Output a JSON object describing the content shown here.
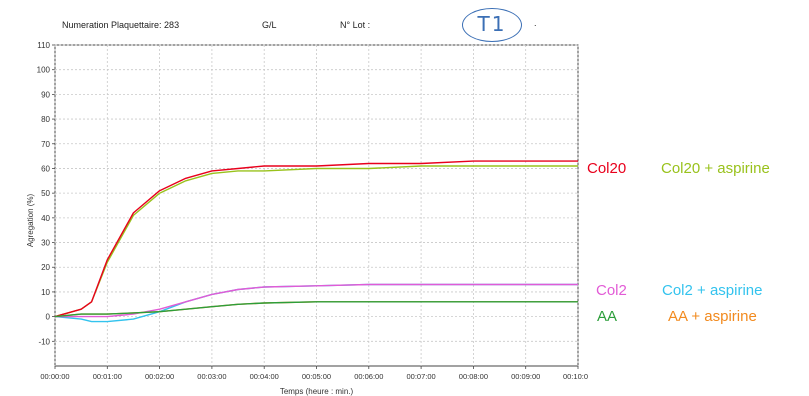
{
  "header": {
    "platelet_count_label": "Numeration Plaquettaire: 283",
    "unit": "G/L",
    "lot_label": "N° Lot :",
    "handwritten_tag": "T1",
    "dot": "."
  },
  "colors": {
    "Col20": "#e8001c",
    "Col20 + aspirine": "#99c21c",
    "Col2": "#e25bd6",
    "Col2 + aspirine": "#33c3ee",
    "AA": "#2c9e3a",
    "AA + aspirine": "#f28a1e"
  },
  "chart_data": {
    "type": "line",
    "xlabel": "Temps (heure : min.)",
    "ylabel": "Agregation (%)",
    "xlim": [
      0,
      10
    ],
    "ylim": [
      -20,
      110
    ],
    "grid": true,
    "x_ticks": [
      "00:00:00",
      "00:01:00",
      "00:02:00",
      "00:03:00",
      "00:04:00",
      "00:05:00",
      "00:06:00",
      "00:07:00",
      "00:08:00",
      "00:09:00",
      "00:10:0"
    ],
    "y_ticks": [
      -10,
      0,
      10,
      20,
      30,
      40,
      50,
      60,
      70,
      80,
      90,
      100,
      110
    ],
    "legend_placement": "right",
    "x": [
      0,
      0.5,
      0.7,
      1,
      1.5,
      2,
      2.5,
      3,
      3.5,
      4,
      5,
      6,
      7,
      8,
      9,
      10
    ],
    "series": [
      {
        "name": "Col20",
        "values": [
          0,
          3,
          6,
          23,
          42,
          51,
          56,
          59,
          60,
          61,
          61,
          62,
          62,
          63,
          63,
          63
        ]
      },
      {
        "name": "Col20 + aspirine",
        "values": [
          0,
          3,
          6,
          22,
          41,
          50,
          55,
          58,
          59,
          59,
          60,
          60,
          61,
          61,
          61,
          61
        ]
      },
      {
        "name": "Col2",
        "values": [
          0,
          0,
          0,
          0,
          1,
          3,
          6,
          9,
          11,
          12,
          12.5,
          13,
          13,
          13,
          13,
          13
        ]
      },
      {
        "name": "Col2 + aspirine",
        "values": [
          0,
          -1,
          -2,
          -2,
          -1,
          2,
          6,
          9,
          11,
          12,
          12.5,
          13,
          13,
          13,
          13,
          13
        ]
      },
      {
        "name": "AA",
        "values": [
          0,
          1,
          1,
          1,
          1.5,
          2,
          3,
          4,
          5,
          5.5,
          6,
          6,
          6,
          6,
          6,
          6
        ]
      },
      {
        "name": "AA + aspirine",
        "values": [
          0,
          1,
          1,
          1,
          1.5,
          2,
          3,
          4,
          5,
          5.5,
          6,
          6,
          6,
          6,
          6,
          6
        ]
      }
    ]
  }
}
